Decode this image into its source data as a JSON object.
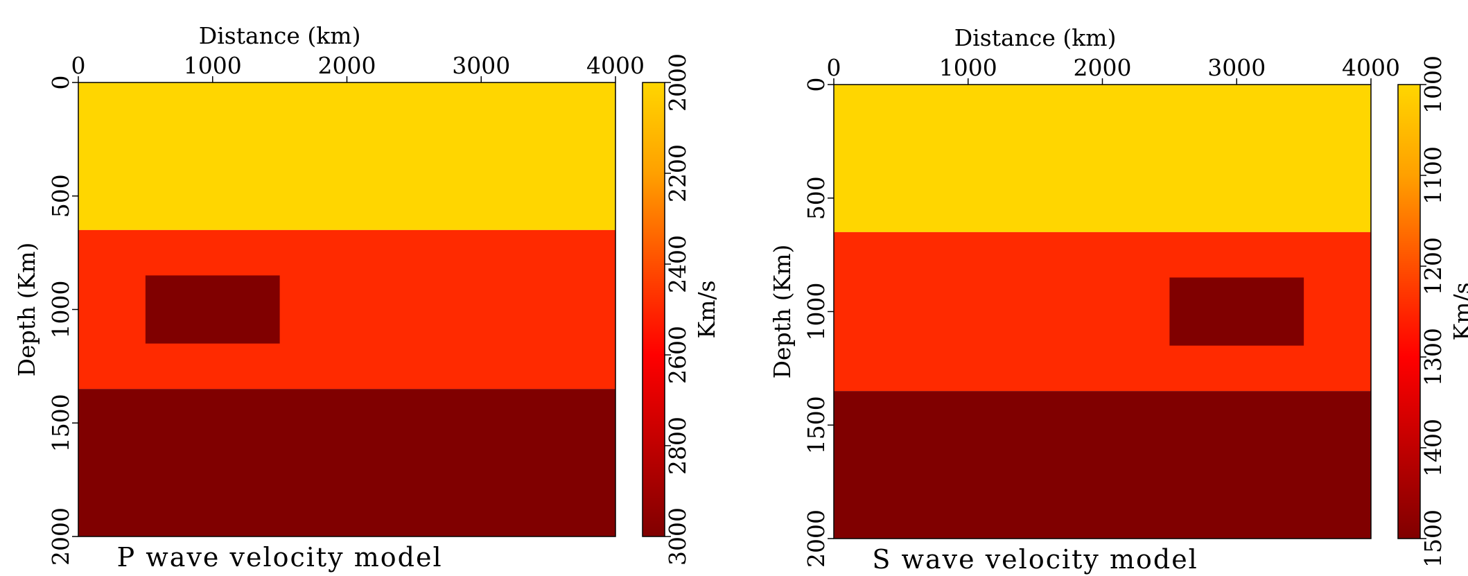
{
  "chart_data": [
    {
      "type": "heatmap",
      "title": "P wave velocity model",
      "xlabel": "Distance (km)",
      "ylabel": "Depth (Km)",
      "xlim": [
        0,
        4000
      ],
      "ylim": [
        0,
        2000
      ],
      "xticks": [
        "0",
        "1000",
        "2000",
        "3000",
        "4000"
      ],
      "yticks": [
        "0",
        "500",
        "1000",
        "1500",
        "2000"
      ],
      "colorbar": {
        "label": "Km/s",
        "range": [
          2000,
          3000
        ],
        "ticks": [
          "2000",
          "2200",
          "2400",
          "2600",
          "2800",
          "3000"
        ]
      },
      "regions": [
        {
          "x": [
            0,
            4000
          ],
          "y": [
            0,
            650
          ],
          "value": 2000
        },
        {
          "x": [
            0,
            4000
          ],
          "y": [
            650,
            1350
          ],
          "value": 2500
        },
        {
          "x": [
            0,
            4000
          ],
          "y": [
            1350,
            2000
          ],
          "value": 3000
        },
        {
          "x": [
            500,
            1500
          ],
          "y": [
            850,
            1150
          ],
          "value": 3000
        }
      ]
    },
    {
      "type": "heatmap",
      "title": "S wave velocity model",
      "xlabel": "Distance (km)",
      "ylabel": "Depth (Km)",
      "xlim": [
        0,
        4000
      ],
      "ylim": [
        0,
        2000
      ],
      "xticks": [
        "0",
        "1000",
        "2000",
        "3000",
        "4000"
      ],
      "yticks": [
        "0",
        "500",
        "1000",
        "1500",
        "2000"
      ],
      "colorbar": {
        "label": "Km/s",
        "range": [
          1000,
          1500
        ],
        "ticks": [
          "1000",
          "1100",
          "1200",
          "1300",
          "1400",
          "1500"
        ]
      },
      "regions": [
        {
          "x": [
            0,
            4000
          ],
          "y": [
            0,
            650
          ],
          "value": 1000
        },
        {
          "x": [
            0,
            4000
          ],
          "y": [
            650,
            1350
          ],
          "value": 1250
        },
        {
          "x": [
            0,
            4000
          ],
          "y": [
            1350,
            2000
          ],
          "value": 1500
        },
        {
          "x": [
            2500,
            3500
          ],
          "y": [
            850,
            1150
          ],
          "value": 1500
        }
      ]
    }
  ],
  "colors": {
    "low": "#ffd600",
    "mid_orange": "#ff8c00",
    "mid": "#ff2a00",
    "high_red": "#ff0000",
    "high": "#800000"
  }
}
